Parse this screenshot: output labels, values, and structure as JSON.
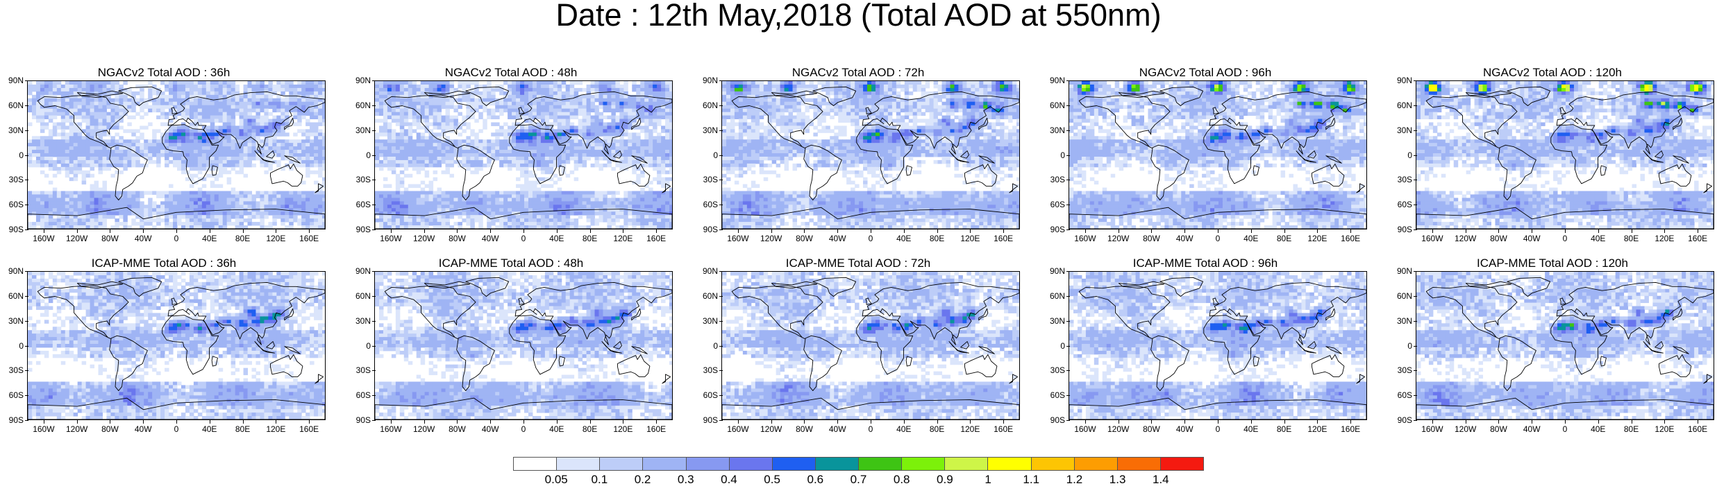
{
  "title": "Date : 12th May,2018 (Total AOD at 550nm)",
  "panels": [
    {
      "id": "ngac-36",
      "title": "NGACv2 Total AOD : 36h",
      "model": "NGACv2",
      "lead": "36h"
    },
    {
      "id": "ngac-48",
      "title": "NGACv2 Total AOD : 48h",
      "model": "NGACv2",
      "lead": "48h"
    },
    {
      "id": "ngac-72",
      "title": "NGACv2 Total AOD : 72h",
      "model": "NGACv2",
      "lead": "72h"
    },
    {
      "id": "ngac-96",
      "title": "NGACv2 Total AOD : 96h",
      "model": "NGACv2",
      "lead": "96h"
    },
    {
      "id": "ngac-120",
      "title": "NGACv2 Total AOD : 120h",
      "model": "NGACv2",
      "lead": "120h"
    },
    {
      "id": "icap-36",
      "title": "ICAP-MME Total AOD : 36h",
      "model": "ICAP-MME",
      "lead": "36h"
    },
    {
      "id": "icap-48",
      "title": "ICAP-MME Total AOD : 48h",
      "model": "ICAP-MME",
      "lead": "48h"
    },
    {
      "id": "icap-72",
      "title": "ICAP-MME Total AOD : 72h",
      "model": "ICAP-MME",
      "lead": "72h"
    },
    {
      "id": "icap-96",
      "title": "ICAP-MME Total AOD : 96h",
      "model": "ICAP-MME",
      "lead": "96h"
    },
    {
      "id": "icap-120",
      "title": "ICAP-MME Total AOD : 120h",
      "model": "ICAP-MME",
      "lead": "120h"
    }
  ],
  "lat_ticks": [
    "90N",
    "60N",
    "30N",
    "0",
    "30S",
    "60S",
    "90S"
  ],
  "lon_ticks": [
    "160W",
    "120W",
    "80W",
    "40W",
    "0",
    "40E",
    "80E",
    "120E",
    "160E"
  ],
  "colorbar": {
    "labels": [
      "0.05",
      "0.1",
      "0.2",
      "0.3",
      "0.4",
      "0.5",
      "0.6",
      "0.7",
      "0.8",
      "0.9",
      "1",
      "1.1",
      "1.2",
      "1.3",
      "1.4"
    ],
    "colors": [
      "#ffffff",
      "#dbe5fb",
      "#bdcdf8",
      "#9fb4f4",
      "#8799f1",
      "#6a76ee",
      "#1f5ff1",
      "#09949b",
      "#3ec414",
      "#7cf10a",
      "#cef548",
      "#ffff00",
      "#fdc503",
      "#fd9d02",
      "#f96d05",
      "#f41a10"
    ]
  }
}
